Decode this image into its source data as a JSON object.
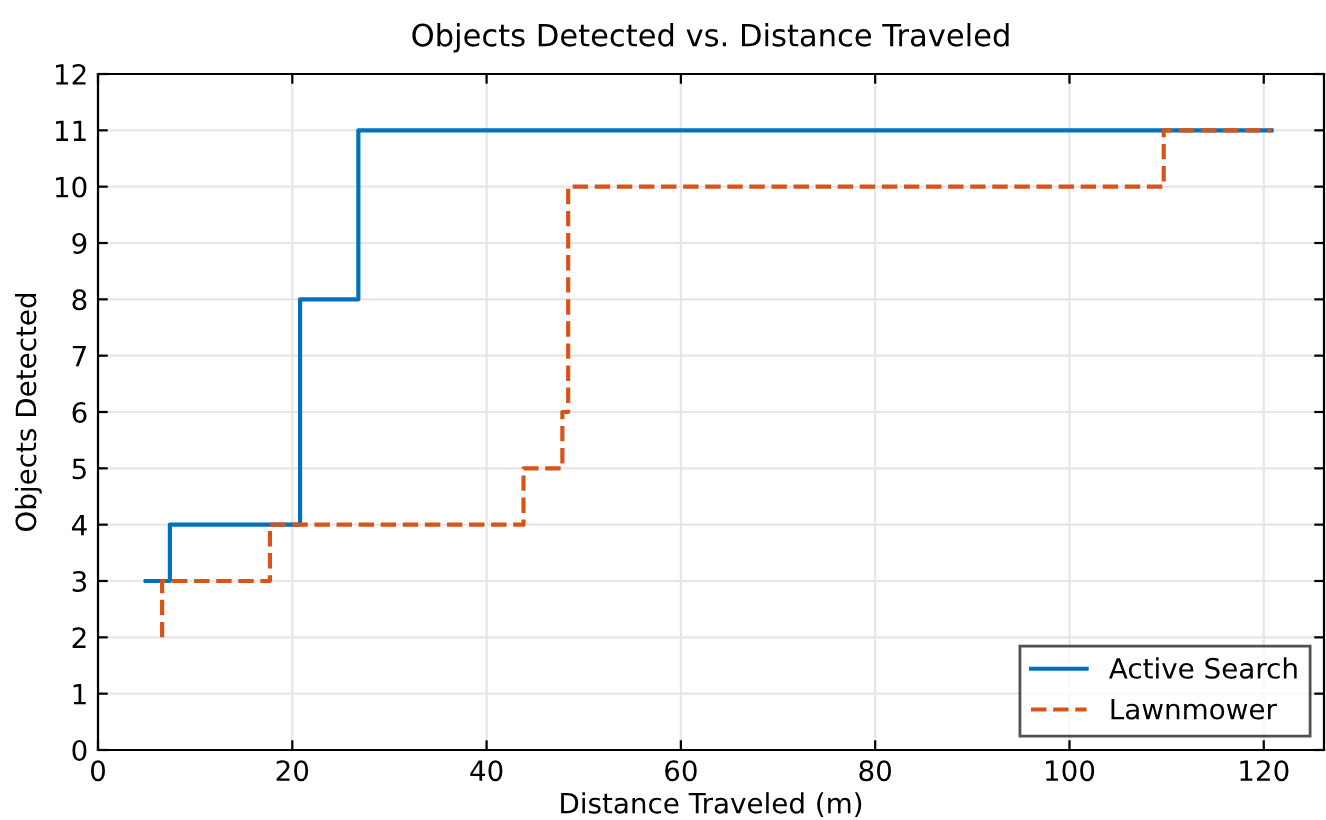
{
  "chart_data": {
    "type": "step",
    "title": "Objects Detected vs. Distance Traveled",
    "xlabel": "Distance Traveled (m)",
    "ylabel": "Objects Detected",
    "series": [
      {
        "name": "Active Search",
        "color": "#0072bd",
        "line_style": "solid",
        "x": [
          4.9,
          7.4,
          20.8,
          26.8,
          120.8
        ],
        "values": [
          3,
          4,
          8,
          11,
          11
        ]
      },
      {
        "name": "Lawnmower",
        "color": "#d95319",
        "line_style": "dashed",
        "x": [
          6.6,
          6.6,
          17.7,
          43.8,
          47.8,
          48.4,
          109.7,
          120.8
        ],
        "values": [
          2,
          3,
          4,
          5,
          6,
          10,
          11,
          11
        ]
      }
    ],
    "xlim": [
      0,
      126.2
    ],
    "xticks": [
      0,
      20,
      40,
      60,
      80,
      100,
      120
    ],
    "ylim": [
      0,
      12
    ],
    "yticks": [
      0,
      1,
      2,
      3,
      4,
      5,
      6,
      7,
      8,
      9,
      10,
      11,
      12
    ],
    "grid": true,
    "legend": "bottom right"
  }
}
